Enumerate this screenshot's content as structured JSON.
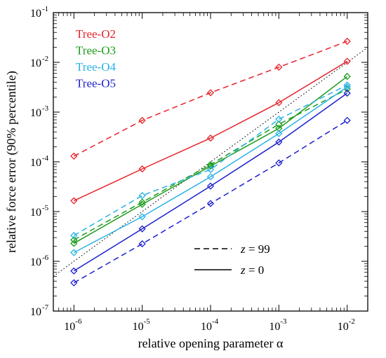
{
  "chart_data": {
    "type": "line",
    "xscale": "log",
    "yscale": "log",
    "xlabel": "relative opening parameter α",
    "ylabel": "relative force error (90% percentile)",
    "xlim": [
      5e-07,
      0.02
    ],
    "ylim": [
      1e-07,
      0.1
    ],
    "x_ticks": [
      {
        "base": "10",
        "exp": "-6",
        "value": 1e-06
      },
      {
        "base": "10",
        "exp": "-5",
        "value": 1e-05
      },
      {
        "base": "10",
        "exp": "-4",
        "value": 0.0001
      },
      {
        "base": "10",
        "exp": "-3",
        "value": 0.001
      },
      {
        "base": "10",
        "exp": "-2",
        "value": 0.01
      }
    ],
    "y_ticks": [
      {
        "base": "10",
        "exp": "-7",
        "value": 1e-07
      },
      {
        "base": "10",
        "exp": "-6",
        "value": 1e-06
      },
      {
        "base": "10",
        "exp": "-5",
        "value": 1e-05
      },
      {
        "base": "10",
        "exp": "-4",
        "value": 0.0001
      },
      {
        "base": "10",
        "exp": "-3",
        "value": 0.001
      },
      {
        "base": "10",
        "exp": "-2",
        "value": 0.01
      },
      {
        "base": "10",
        "exp": "-1",
        "value": 0.1
      }
    ],
    "x": [
      1e-06,
      1e-05,
      0.0001,
      0.001,
      0.01
    ],
    "series": [
      {
        "name": "Tree-O2",
        "color": "#e8212a",
        "z": "99",
        "style": "dashed",
        "values": [
          0.00013,
          0.00068,
          0.00245,
          0.008,
          0.0265
        ]
      },
      {
        "name": "Tree-O2",
        "color": "#e8212a",
        "z": "0",
        "style": "solid",
        "values": [
          1.65e-05,
          7.2e-05,
          0.0003,
          0.00155,
          0.0105
        ]
      },
      {
        "name": "Tree-O3",
        "color": "#1a9a1a",
        "z": "99",
        "style": "dashed",
        "values": [
          2.7e-06,
          1.55e-05,
          8.8e-05,
          0.00057,
          0.0029
        ]
      },
      {
        "name": "Tree-O3",
        "color": "#1a9a1a",
        "z": "0",
        "style": "solid",
        "values": [
          2.3e-06,
          1.4e-05,
          8.2e-05,
          0.00047,
          0.0052
        ]
      },
      {
        "name": "Tree-O4",
        "color": "#27b2e6",
        "z": "99",
        "style": "dashed",
        "values": [
          3.3e-06,
          2.1e-05,
          7e-05,
          0.00072,
          0.0035
        ]
      },
      {
        "name": "Tree-O4",
        "color": "#27b2e6",
        "z": "0",
        "style": "solid",
        "values": [
          1.5e-06,
          7.9e-06,
          5e-05,
          0.00037,
          0.0032
        ]
      },
      {
        "name": "Tree-O5",
        "color": "#1b1fcf",
        "z": "99",
        "style": "dashed",
        "values": [
          3.7e-07,
          2.25e-06,
          1.45e-05,
          9.5e-05,
          0.00068
        ]
      },
      {
        "name": "Tree-O5",
        "color": "#1b1fcf",
        "z": "0",
        "style": "solid",
        "values": [
          6.4e-07,
          4.5e-06,
          3.25e-05,
          0.00025,
          0.0024
        ]
      }
    ],
    "reference_line": {
      "style": "dotted",
      "color": "#000000",
      "points": [
        [
          5e-07,
          5e-07
        ],
        [
          0.02,
          0.02
        ]
      ]
    },
    "legend": {
      "placement": "top-left",
      "entries": [
        {
          "label": "Tree-O2",
          "color": "#e8212a"
        },
        {
          "label": "Tree-O3",
          "color": "#1a9a1a"
        },
        {
          "label": "Tree-O4",
          "color": "#27b2e6"
        },
        {
          "label": "Tree-O5",
          "color": "#1b1fcf"
        }
      ]
    },
    "style_legend": {
      "placement": "lower-right",
      "entries": [
        {
          "style": "dashed",
          "var": "z",
          "eq": " = ",
          "val": "99"
        },
        {
          "style": "solid",
          "var": "z",
          "eq": " = ",
          "val": "0"
        }
      ]
    },
    "marker": "diamond",
    "grid": false
  }
}
